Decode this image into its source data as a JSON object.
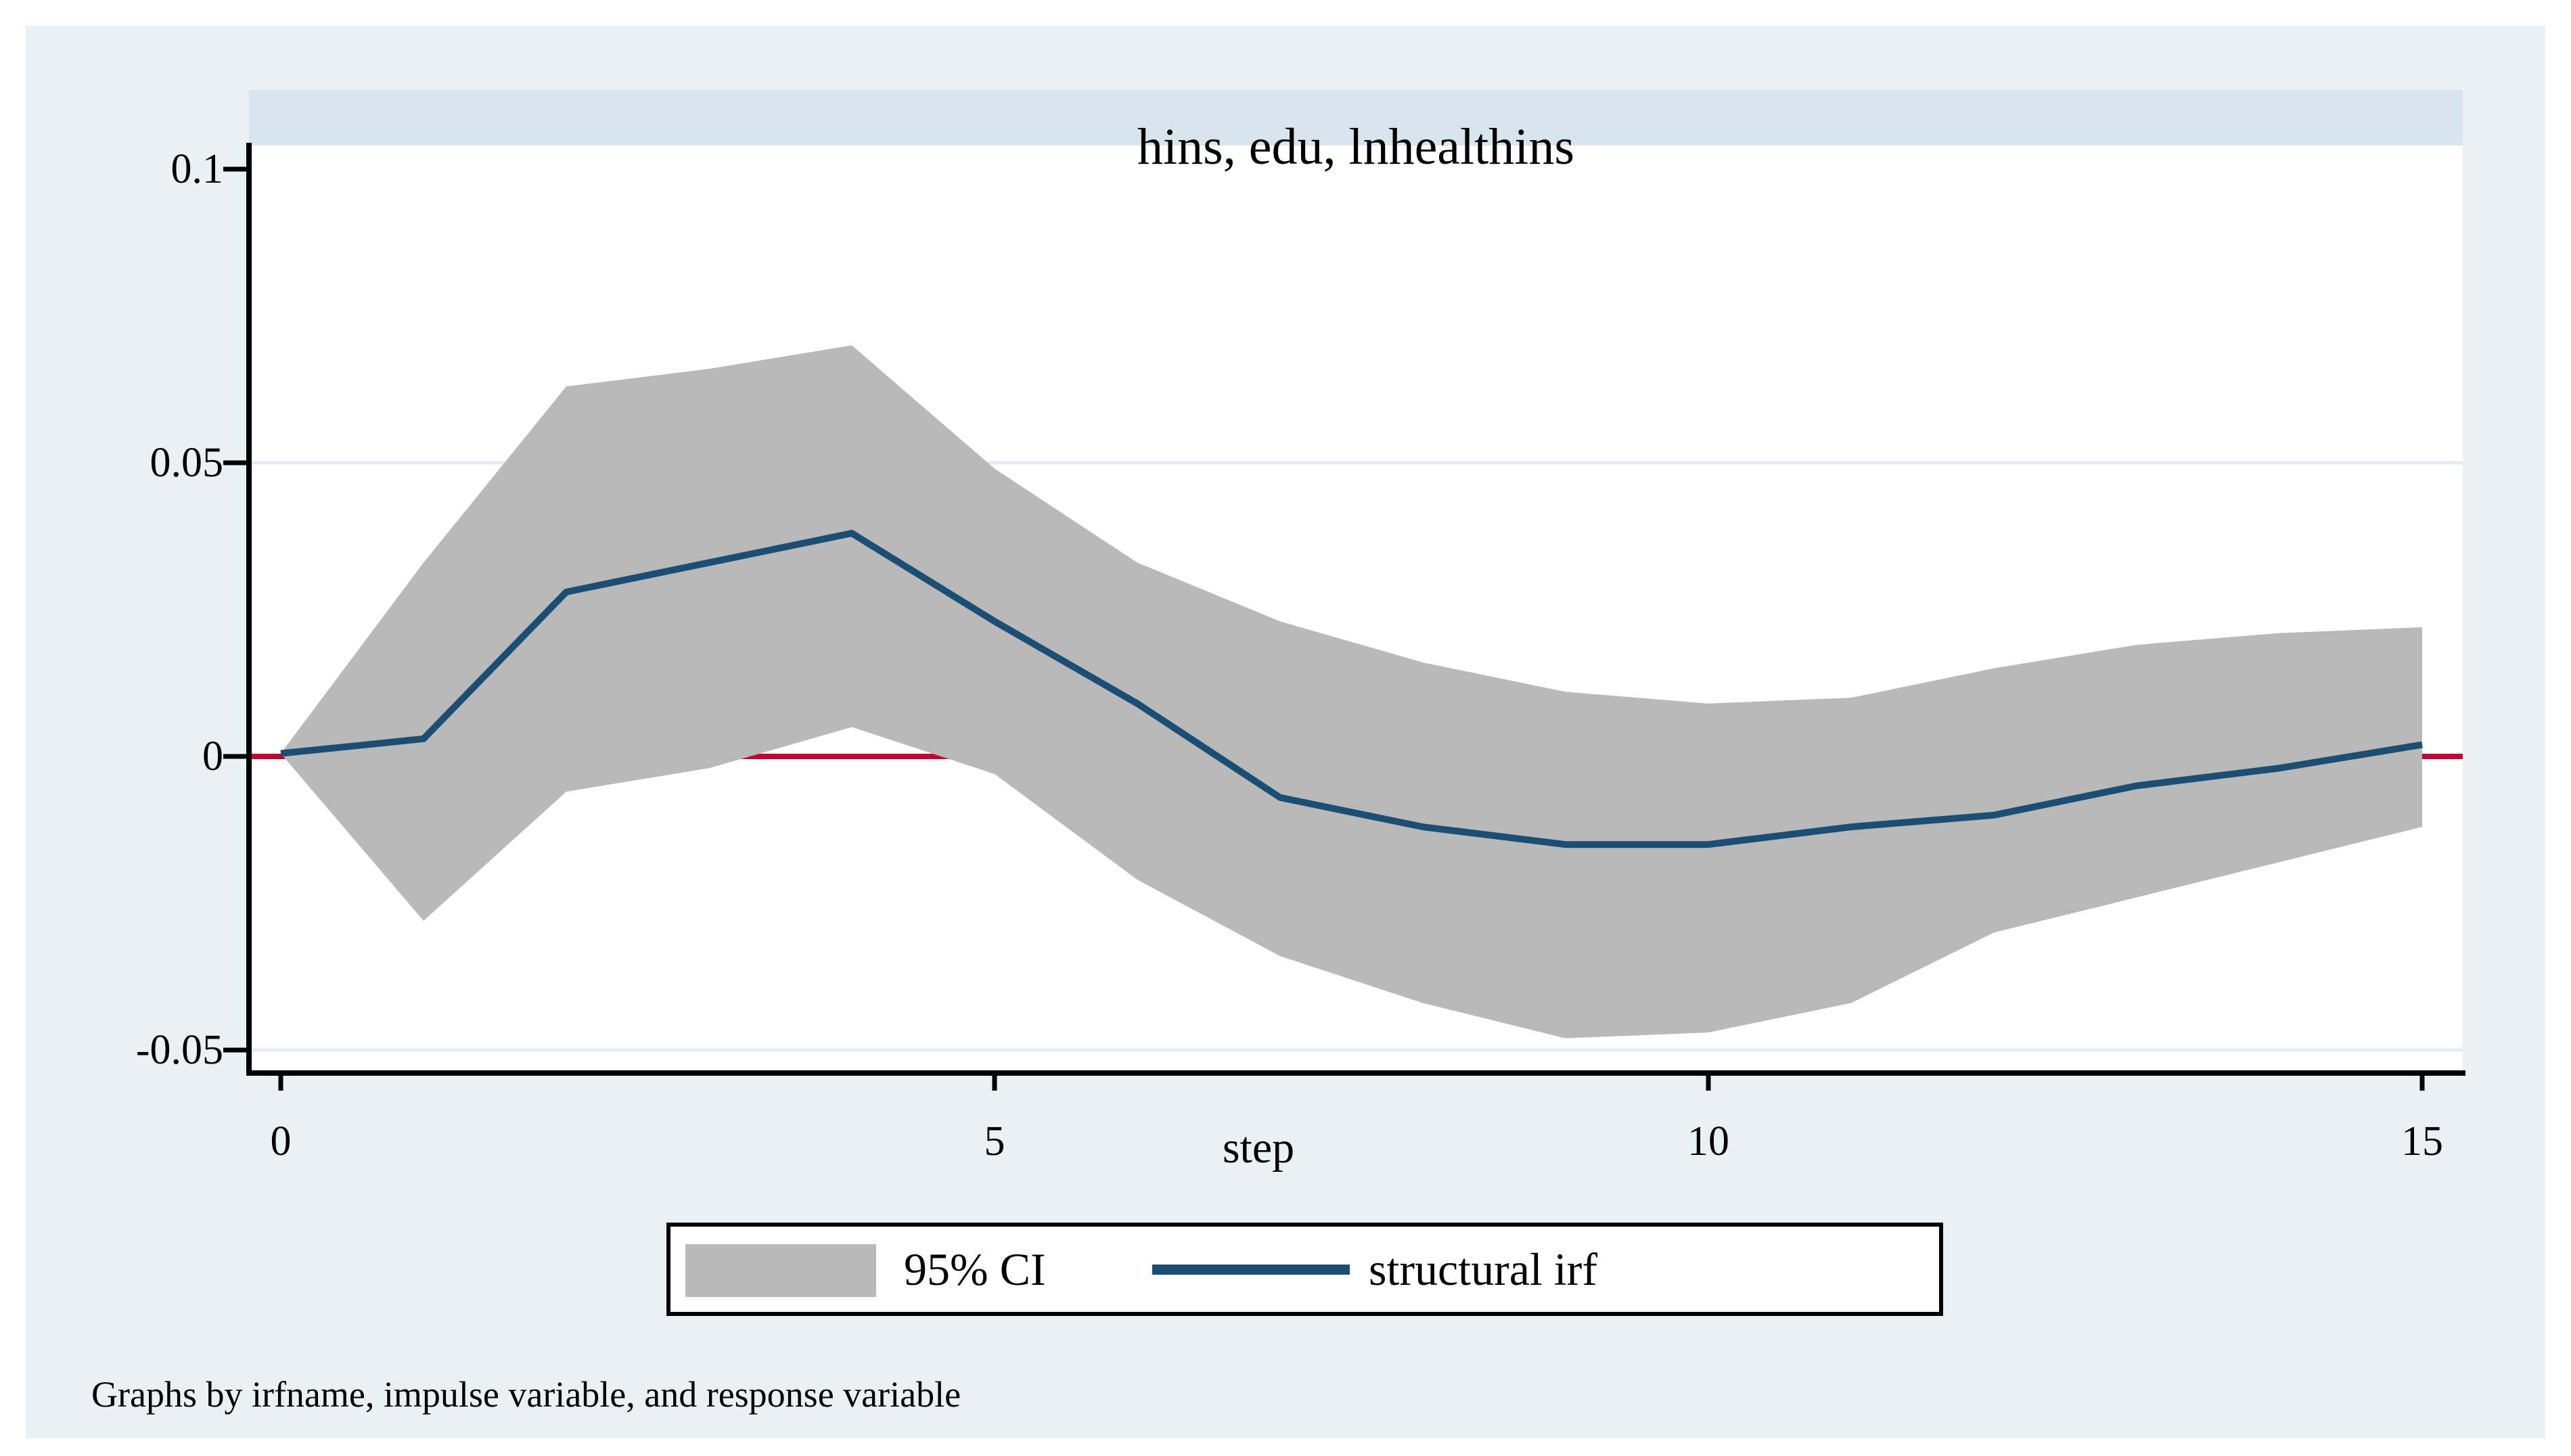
{
  "title": "hins, edu, lnhealthins",
  "caption": "Graphs by irfname, impulse variable, and response variable",
  "x_axis_title": "step",
  "legend": {
    "ci_label": "95% CI",
    "irf_label": "structural irf"
  },
  "colors": {
    "outer_background": "#eaf1f4",
    "title_band": "#d9e5ec",
    "plot_background": "#ffffff",
    "gridline": "#e3ecf2",
    "axis": "#000000",
    "ci_band": "#b9b9b9",
    "irf_line": "#1c4e74",
    "zero_line": "#c10534"
  },
  "chart_data": {
    "type": "area",
    "title": "hins, edu, lnhealthins",
    "xlabel": "step",
    "ylabel": "",
    "xlim": [
      -0.25,
      15.3
    ],
    "ylim": [
      -0.054,
      0.104
    ],
    "x_tick_labels": [
      "0",
      "5",
      "10",
      "15"
    ],
    "y_tick_labels": [
      "0.1",
      "0.05",
      "0",
      "-0.05"
    ],
    "x_ticks": [
      0,
      5,
      10,
      15
    ],
    "y_ticks": [
      0.1,
      0.05,
      0,
      -0.05
    ],
    "grid_y_values": [
      0.05,
      -0.05
    ],
    "ref_line_y": 0,
    "legend_position": "bottom",
    "x": [
      0,
      1,
      2,
      3,
      4,
      5,
      6,
      7,
      8,
      9,
      10,
      11,
      12,
      13,
      14,
      15
    ],
    "series": [
      {
        "name": "95% CI",
        "type": "band",
        "upper": [
          0.0005,
          0.033,
          0.063,
          0.066,
          0.07,
          0.049,
          0.033,
          0.023,
          0.016,
          0.011,
          0.009,
          0.01,
          0.015,
          0.019,
          0.021,
          0.022
        ],
        "lower": [
          0.0005,
          -0.028,
          -0.006,
          -0.002,
          0.005,
          -0.003,
          -0.021,
          -0.034,
          -0.042,
          -0.048,
          -0.047,
          -0.042,
          -0.03,
          -0.024,
          -0.018,
          -0.012
        ]
      },
      {
        "name": "structural irf",
        "type": "line",
        "values": [
          0.0005,
          0.003,
          0.028,
          0.033,
          0.038,
          0.023,
          0.009,
          -0.007,
          -0.012,
          -0.015,
          -0.015,
          -0.012,
          -0.01,
          -0.005,
          -0.002,
          0.002
        ]
      }
    ]
  }
}
